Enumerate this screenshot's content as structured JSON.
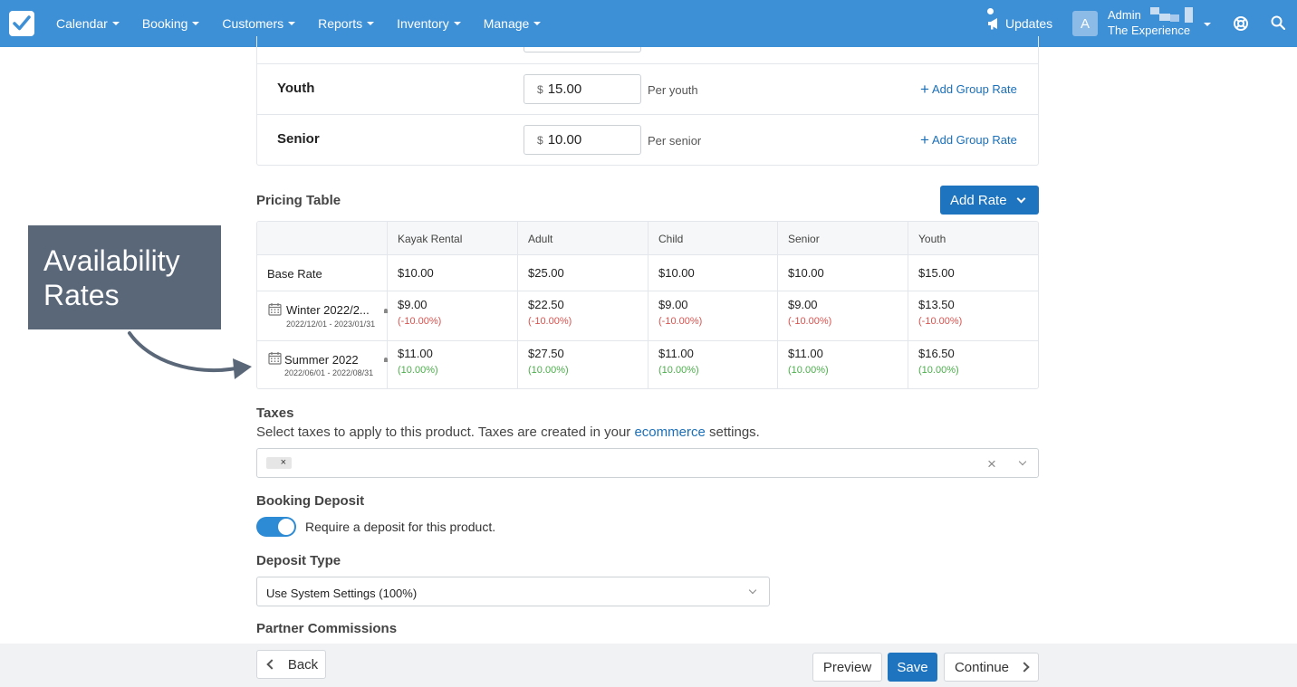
{
  "nav": {
    "items": [
      "Calendar",
      "Booking",
      "Customers",
      "Reports",
      "Inventory",
      "Manage"
    ],
    "updates_label": "Updates",
    "avatar_letter": "A",
    "user_role": "Admin",
    "company": "The Experience"
  },
  "rates": [
    {
      "name": "Youth",
      "currency": "$",
      "value": "15.00",
      "per": "Per youth",
      "action": "Add Group Rate"
    },
    {
      "name": "Senior",
      "currency": "$",
      "value": "10.00",
      "per": "Per senior",
      "action": "Add Group Rate"
    }
  ],
  "pricing": {
    "title": "Pricing Table",
    "add_rate_label": "Add Rate",
    "columns": [
      "Kayak Rental",
      "Adult",
      "Child",
      "Senior",
      "Youth"
    ],
    "base": {
      "label": "Base Rate",
      "values": [
        "$10.00",
        "$25.00",
        "$10.00",
        "$10.00",
        "$15.00"
      ]
    },
    "seasons": [
      {
        "name": "Winter 2022/2...",
        "range": "2022/12/01 - 2023/01/31",
        "values": [
          "$9.00",
          "$22.50",
          "$9.00",
          "$9.00",
          "$13.50"
        ],
        "pcts": [
          "(-10.00%)",
          "(-10.00%)",
          "(-10.00%)",
          "(-10.00%)",
          "(-10.00%)"
        ]
      },
      {
        "name": "Summer 2022",
        "range": "2022/06/01 - 2022/08/31",
        "values": [
          "$11.00",
          "$27.50",
          "$11.00",
          "$11.00",
          "$16.50"
        ],
        "pcts": [
          "(10.00%)",
          "(10.00%)",
          "(10.00%)",
          "(10.00%)",
          "(10.00%)"
        ]
      }
    ]
  },
  "callout": {
    "line1": "Availability",
    "line2": "Rates"
  },
  "taxes": {
    "title": "Taxes",
    "desc_before": "Select taxes to apply to this product. Taxes are created in your ",
    "desc_link": "ecommerce",
    "desc_after": " settings.",
    "tag_remove": "×",
    "clear": "×"
  },
  "deposit": {
    "title": "Booking Deposit",
    "toggle_label": "Require a deposit for this product.",
    "toggle_on": true,
    "type_title": "Deposit Type",
    "type_value": "Use System Settings (100%)"
  },
  "partner_title": "Partner Commissions",
  "footer": {
    "back": "Back",
    "preview": "Preview",
    "save": "Save",
    "continue": "Continue"
  },
  "colors": {
    "brand": "#3d8fd6",
    "primary": "#1f74bf",
    "negative": "#d9534f",
    "positive": "#4cae4c"
  }
}
